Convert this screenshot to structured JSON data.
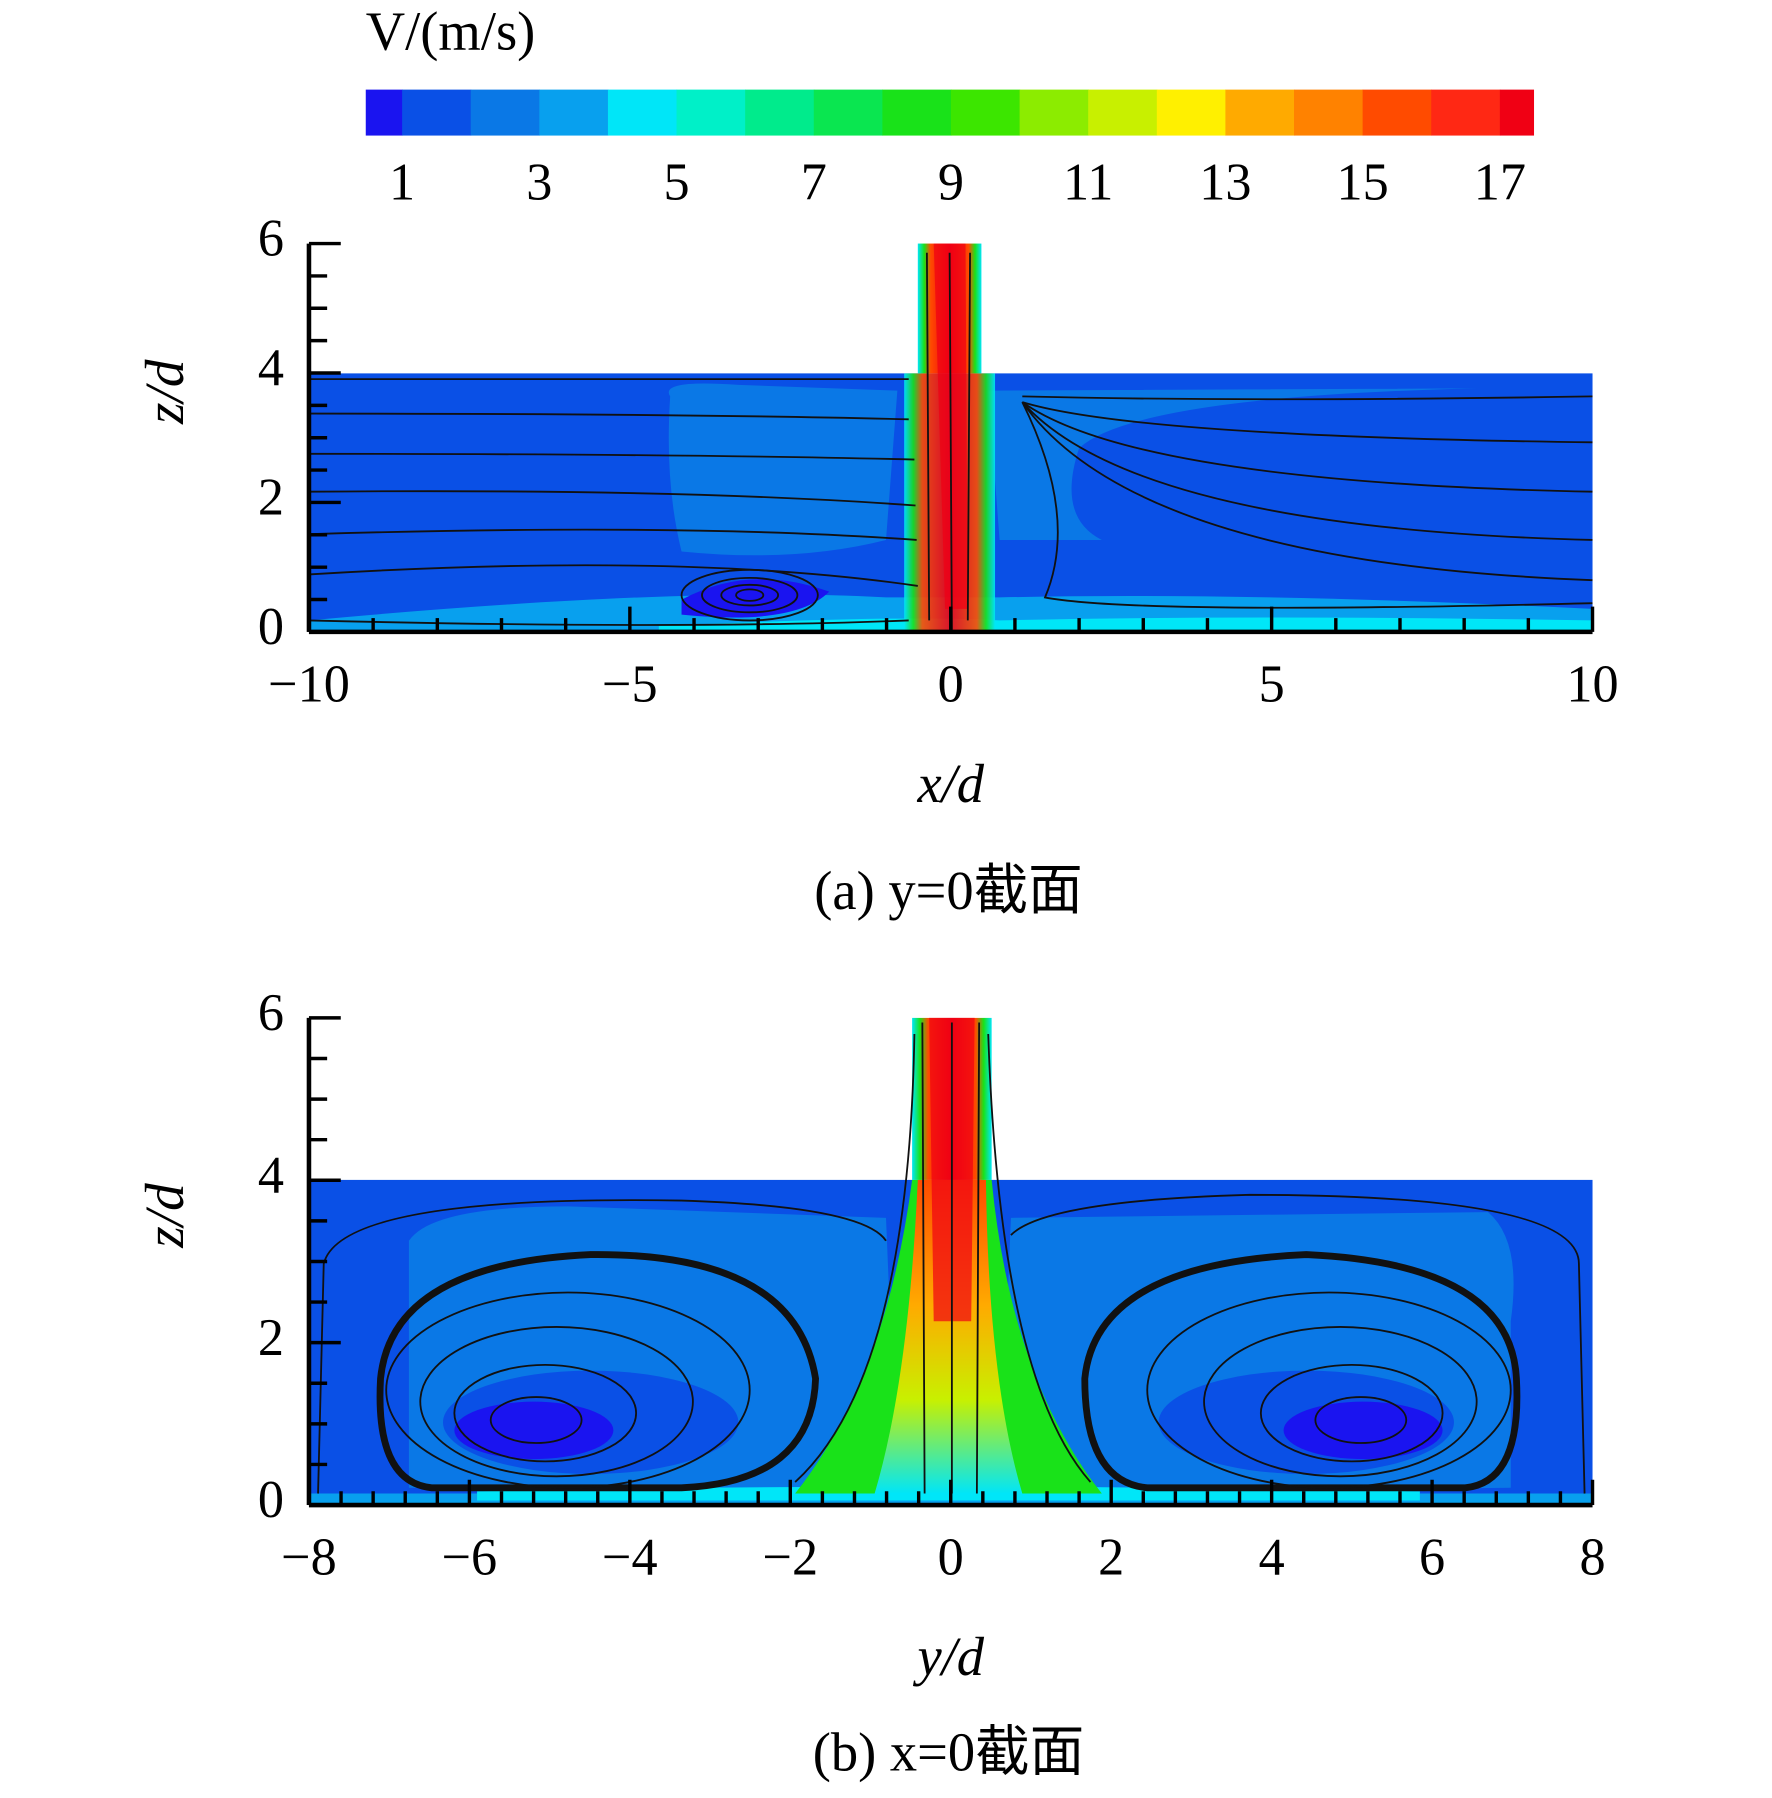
{
  "chart_data": [
    {
      "type": "colorbar",
      "title": "V/(m/s)",
      "clim": [
        0.47,
        17.49
      ],
      "levels": [
        1,
        2,
        3,
        4,
        5,
        6,
        7,
        8,
        9,
        10,
        11,
        12,
        13,
        14,
        15,
        16,
        17
      ],
      "colors": [
        "#1a14f0",
        "#0a50e6",
        "#0a78e6",
        "#08a0ee",
        "#00e6f8",
        "#00f0c8",
        "#00eb8c",
        "#0ae650",
        "#19e219",
        "#3ce600",
        "#8cec00",
        "#c8f000",
        "#fff000",
        "#ffaa00",
        "#ff8200",
        "#ff4b00",
        "#ff2814",
        "#f00014"
      ],
      "ticks": [
        1,
        3,
        5,
        7,
        9,
        11,
        13,
        15,
        17
      ]
    },
    {
      "type": "contour",
      "caption": "(a) y=0截面",
      "xlabel": "x/d",
      "ylabel": "z/d",
      "xlim": [
        -10,
        10
      ],
      "ylim": [
        0,
        6
      ],
      "xticks": [
        {
          "value": -10,
          "label": "−10"
        },
        {
          "value": -5,
          "label": "−5"
        },
        0,
        5,
        10
      ],
      "yticks": [
        0,
        2,
        4,
        6
      ]
    },
    {
      "type": "contour",
      "caption": "(b) x=0截面",
      "xlabel": "y/d",
      "ylabel": "z/d",
      "xlim": [
        -8,
        8
      ],
      "ylim": [
        0,
        6
      ],
      "xticks": [
        {
          "value": -8,
          "label": "−8"
        },
        {
          "value": -6,
          "label": "−6"
        },
        {
          "value": -4,
          "label": "−4"
        },
        {
          "value": -2,
          "label": "−2"
        },
        0,
        2,
        4,
        6,
        8
      ],
      "yticks": [
        0,
        2,
        4,
        6
      ]
    }
  ]
}
